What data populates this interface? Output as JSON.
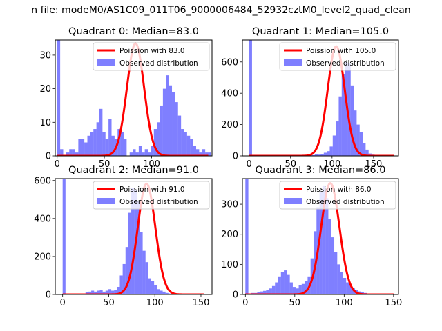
{
  "figure": {
    "suptitle": "n file: modeM0/AS1C09_011T06_9000006484_52932cztM0_level2_quad_clean",
    "hist_color": "#0000ff",
    "fit_color": "#ff0000",
    "hist_label": "Observed distribution"
  },
  "chart_data": [
    {
      "type": "bar",
      "title": "Quadrant 0: Median=83.0",
      "legend_fit": "Poission with 83.0",
      "legend_hist": "Observed distribution",
      "legend_position": "top-right",
      "xlim": [
        -2,
        164
      ],
      "ylim": [
        0,
        34.5
      ],
      "xticks": [
        0,
        50,
        100
      ],
      "yticks": [
        0,
        10,
        20,
        30
      ],
      "bin_width": 3.2,
      "values": [
        34.5,
        2,
        0,
        1,
        2,
        2,
        1,
        5,
        5,
        4,
        6,
        7,
        8,
        10,
        14,
        7,
        5,
        11,
        6,
        5,
        8,
        7,
        5,
        0,
        1,
        2,
        1,
        3,
        1,
        2,
        1,
        3,
        8,
        10,
        15,
        20,
        24,
        21,
        19,
        16,
        12,
        8,
        7,
        6,
        5,
        3,
        2,
        1,
        2,
        1,
        1
      ],
      "fit_mean": 83.0,
      "fit_sd": 9.1,
      "fit_peak": 33.5,
      "fit_range": [
        0,
        160
      ]
    },
    {
      "type": "bar",
      "title": "Quadrant 1: Median=105.0",
      "legend_fit": "Poission with 105.0",
      "legend_hist": "Observed distribution",
      "legend_position": "top-right",
      "xlim": [
        -8,
        180
      ],
      "ylim": [
        0,
        740
      ],
      "xticks": [
        0,
        50,
        100,
        150
      ],
      "yticks": [
        0,
        200,
        400,
        600
      ],
      "bin_width": 3.6,
      "values": [
        740,
        0,
        0,
        0,
        0,
        0,
        0,
        0,
        0,
        0,
        0,
        0,
        0,
        0,
        0,
        0,
        0,
        0,
        0,
        0,
        3,
        5,
        10,
        8,
        12,
        20,
        30,
        60,
        130,
        220,
        380,
        520,
        600,
        590,
        450,
        290,
        200,
        150,
        80,
        40,
        15,
        8,
        4,
        2,
        1,
        0,
        0,
        0,
        0,
        0
      ],
      "fit_mean": 105.0,
      "fit_sd": 10.25,
      "fit_peak": 700,
      "fit_range": [
        0,
        175
      ]
    },
    {
      "type": "bar",
      "title": "Quadrant 2: Median=91.0",
      "legend_fit": "Poission with 91.0",
      "legend_hist": "Observed distribution",
      "legend_position": "top-right",
      "xlim": [
        -8,
        162
      ],
      "ylim": [
        0,
        610
      ],
      "xticks": [
        0,
        50,
        100,
        150
      ],
      "yticks": [
        0,
        200,
        400,
        600
      ],
      "bin_width": 3.1,
      "values": [
        610,
        0,
        0,
        0,
        0,
        0,
        0,
        0,
        12,
        15,
        20,
        15,
        20,
        25,
        15,
        20,
        28,
        20,
        25,
        40,
        100,
        160,
        250,
        430,
        560,
        550,
        490,
        330,
        230,
        170,
        85,
        70,
        50,
        28,
        20,
        15,
        8,
        5,
        3,
        2
      ],
      "fit_mean": 91.0,
      "fit_sd": 9.54,
      "fit_peak": 583,
      "fit_range": [
        0,
        153
      ]
    },
    {
      "type": "bar",
      "title": "Quadrant 3: Median=86.0",
      "legend_fit": "Poission with 86.0",
      "legend_hist": "Observed distribution",
      "legend_position": "top-right",
      "xlim": [
        -3,
        155
      ],
      "ylim": [
        0,
        385
      ],
      "xticks": [
        0,
        50,
        100,
        150
      ],
      "yticks": [
        0,
        100,
        200,
        300
      ],
      "bin_width": 3,
      "values": [
        385,
        3,
        5,
        5,
        8,
        10,
        12,
        15,
        20,
        28,
        40,
        60,
        75,
        80,
        65,
        40,
        25,
        20,
        30,
        35,
        45,
        60,
        120,
        210,
        290,
        340,
        360,
        320,
        250,
        190,
        140,
        100,
        75,
        55,
        40,
        30,
        20,
        15,
        10,
        8,
        5,
        3,
        2,
        1,
        1,
        0,
        0,
        0,
        0,
        0
      ],
      "fit_mean": 86.0,
      "fit_sd": 9.27,
      "fit_peak": 370,
      "fit_range": [
        0,
        150
      ]
    }
  ]
}
